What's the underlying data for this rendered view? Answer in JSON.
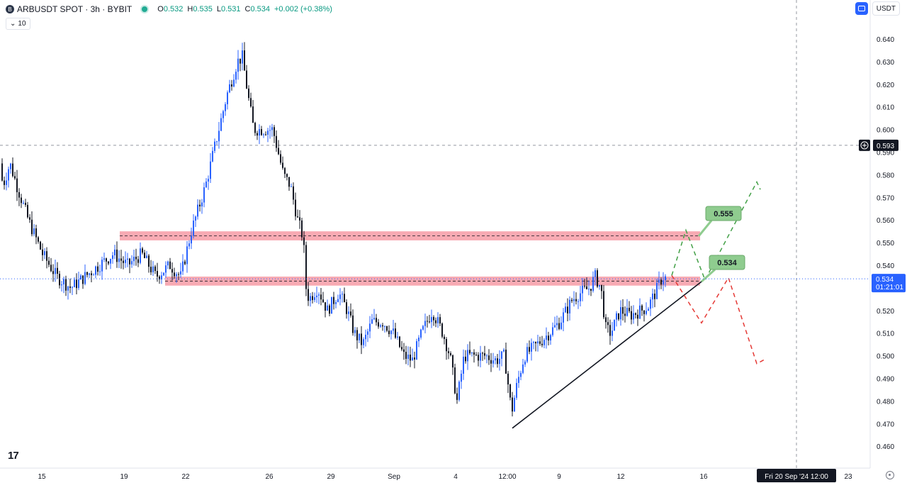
{
  "header": {
    "title": "ARBUSDT SPOT · 3h · BYBIT",
    "symbol_icon": "B",
    "ohlc": [
      {
        "k": "O",
        "v": "0.532"
      },
      {
        "k": "H",
        "v": "0.535"
      },
      {
        "k": "L",
        "v": "0.531"
      },
      {
        "k": "C",
        "v": "0.534"
      },
      {
        "k": "",
        "v": "+0.002 (+0.38%)"
      }
    ]
  },
  "interval_pill": {
    "label": "10",
    "icon": "chevron-down-icon"
  },
  "top_right": {
    "currency": "USDT",
    "button_icon": "compare-icon"
  },
  "colors": {
    "up": "#2962ff",
    "down": "#131722",
    "zone": "#f7a1ab",
    "target_box": "#8fcc8f",
    "bull": "#43a047",
    "bear": "#e53935",
    "price_tag": "#2962ff"
  },
  "chart_data": {
    "type": "candlestick",
    "interval": "3h",
    "ylim": [
      0.455,
      0.648
    ],
    "y_ticks": [
      "0.640",
      "0.630",
      "0.620",
      "0.610",
      "0.600",
      "0.590",
      "0.580",
      "0.570",
      "0.560",
      "0.550",
      "0.540",
      "0.530",
      "0.520",
      "0.510",
      "0.500",
      "0.490",
      "0.480",
      "0.470",
      "0.460"
    ],
    "x_ticks": [
      "15",
      "19",
      "22",
      "26",
      "29",
      "Sep",
      "4",
      "12:00",
      "9",
      "12",
      "16",
      "23"
    ],
    "current_price": {
      "value": 0.534,
      "label": "0.534",
      "countdown": "01:21:01"
    },
    "crosshair": {
      "price": 0.593,
      "label": "0.593",
      "date_label": "Fri 20 Sep '24   12:00"
    },
    "resistance_zones": [
      {
        "low": 0.551,
        "high": 0.555
      },
      {
        "low": 0.531,
        "high": 0.535
      }
    ],
    "annotations": [
      {
        "text": "0.555",
        "price": 0.557
      },
      {
        "text": "0.534",
        "price": 0.5367
      }
    ],
    "trendline": {
      "from": 0.468,
      "to": 0.5335
    },
    "scenarios": {
      "bullish": [
        0.5355,
        0.5555,
        0.5335,
        0.5768,
        0.5735
      ],
      "bearish": [
        0.5355,
        0.5145,
        0.5345,
        0.4965,
        0.4985
      ]
    },
    "series": [
      {
        "name": "ARBUSDT",
        "anchors": [
          [
            0,
            0.585
          ],
          [
            4,
            0.575
          ],
          [
            14,
            0.585
          ],
          [
            24,
            0.575
          ],
          [
            40,
            0.56
          ],
          [
            60,
            0.545
          ],
          [
            80,
            0.535
          ],
          [
            100,
            0.53
          ],
          [
            120,
            0.535
          ],
          [
            140,
            0.54
          ],
          [
            160,
            0.545
          ],
          [
            180,
            0.54
          ],
          [
            200,
            0.545
          ],
          [
            220,
            0.535
          ],
          [
            240,
            0.54
          ],
          [
            255,
            0.535
          ],
          [
            270,
            0.555
          ],
          [
            290,
            0.575
          ],
          [
            305,
            0.595
          ],
          [
            320,
            0.615
          ],
          [
            335,
            0.63
          ],
          [
            342,
            0.632
          ],
          [
            350,
            0.615
          ],
          [
            358,
            0.6
          ],
          [
            370,
            0.6
          ],
          [
            385,
            0.6
          ],
          [
            400,
            0.58
          ],
          [
            410,
            0.575
          ],
          [
            420,
            0.56
          ],
          [
            428,
            0.552
          ],
          [
            432,
            0.53
          ],
          [
            436,
            0.525
          ],
          [
            448,
            0.53
          ],
          [
            462,
            0.52
          ],
          [
            478,
            0.528
          ],
          [
            490,
            0.52
          ],
          [
            500,
            0.51
          ],
          [
            512,
            0.505
          ],
          [
            525,
            0.515
          ],
          [
            540,
            0.515
          ],
          [
            555,
            0.51
          ],
          [
            570,
            0.5
          ],
          [
            582,
            0.498
          ],
          [
            595,
            0.51
          ],
          [
            610,
            0.52
          ],
          [
            625,
            0.51
          ],
          [
            635,
            0.5
          ],
          [
            645,
            0.48
          ],
          [
            655,
            0.5
          ],
          [
            668,
            0.5
          ],
          [
            685,
            0.5
          ],
          [
            700,
            0.498
          ],
          [
            712,
            0.5
          ],
          [
            722,
            0.475
          ],
          [
            730,
            0.488
          ],
          [
            740,
            0.5
          ],
          [
            758,
            0.505
          ],
          [
            775,
            0.51
          ],
          [
            790,
            0.515
          ],
          [
            808,
            0.525
          ],
          [
            820,
            0.528
          ],
          [
            832,
            0.53
          ],
          [
            840,
            0.535
          ],
          [
            848,
            0.53
          ],
          [
            855,
            0.512
          ],
          [
            862,
            0.51
          ],
          [
            875,
            0.52
          ],
          [
            890,
            0.518
          ],
          [
            905,
            0.52
          ],
          [
            915,
            0.522
          ],
          [
            925,
            0.528
          ],
          [
            935,
            0.535
          ],
          [
            941,
            0.534
          ]
        ]
      }
    ]
  }
}
